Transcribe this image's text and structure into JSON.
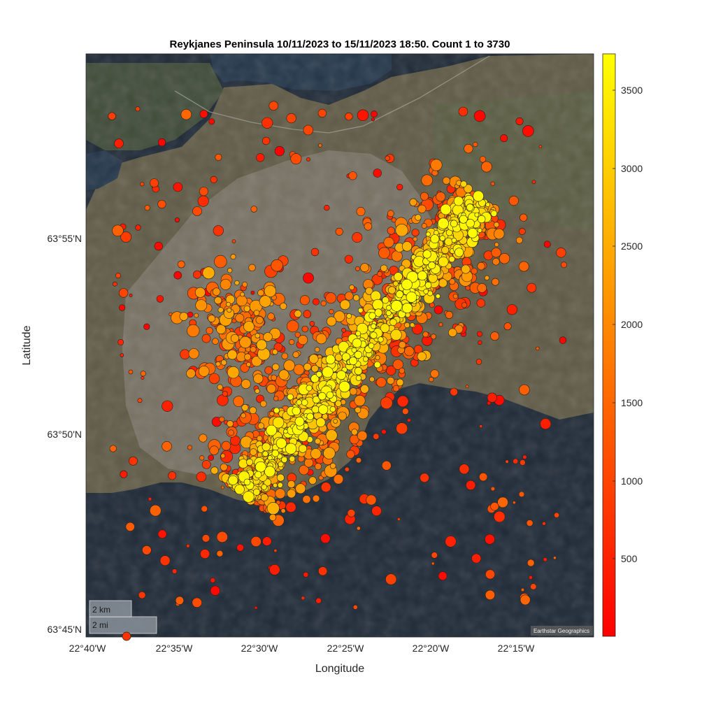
{
  "title": "Reykjanes Peninsula 10/11/2023 to 15/11/2023 18:50.  Count 1 to 3730",
  "ylabel": "Latitude",
  "xlabel": "Longitude",
  "x_ticks": [
    "22°40'W",
    "22°35'W",
    "22°30'W",
    "22°25'W",
    "22°20'W",
    "22°15'W"
  ],
  "y_ticks": [
    "63°55'N",
    "63°50'N",
    "63°45'N"
  ],
  "colorbar": {
    "ticks": [
      "3500",
      "3000",
      "2500",
      "2000",
      "1500",
      "1000",
      "500"
    ],
    "range": [
      1,
      3730
    ],
    "colormap": "autumn",
    "colors": {
      "low": "#ff0000",
      "high": "#ffff00"
    }
  },
  "scale_bar": {
    "km": "2 km",
    "mi": "2 mi"
  },
  "attribution": "Earthstar Geographics",
  "colors": {
    "land": "#5f5a45",
    "lava_field": "#7b7668",
    "sea": "#1e2936",
    "bay": "#24364a",
    "vegetation": "#4f5a3a"
  },
  "icons": [
    "scale-bar",
    "basemap-satellite"
  ],
  "chart_data": {
    "type": "scatter",
    "title": "Reykjanes Peninsula 10/11/2023 to 15/11/2023 18:50.  Count 1 to 3730",
    "xlabel": "Longitude",
    "ylabel": "Latitude",
    "x_units": "degrees longitude (west)",
    "y_units": "degrees latitude (north)",
    "xlim": [
      "22°40'W",
      "22°10'W"
    ],
    "ylim": [
      "63°45'N",
      "63°59'N"
    ],
    "color_variable": "event count (1 to 3730)",
    "approx_swarm_axis": {
      "southwest_end": {
        "lon": "22°30.5'W",
        "lat": "63°48.5'N"
      },
      "northeast_end": {
        "lon": "22°17'W",
        "lat": "63°56'N"
      }
    },
    "grid": false,
    "legend": "colorbar right"
  }
}
